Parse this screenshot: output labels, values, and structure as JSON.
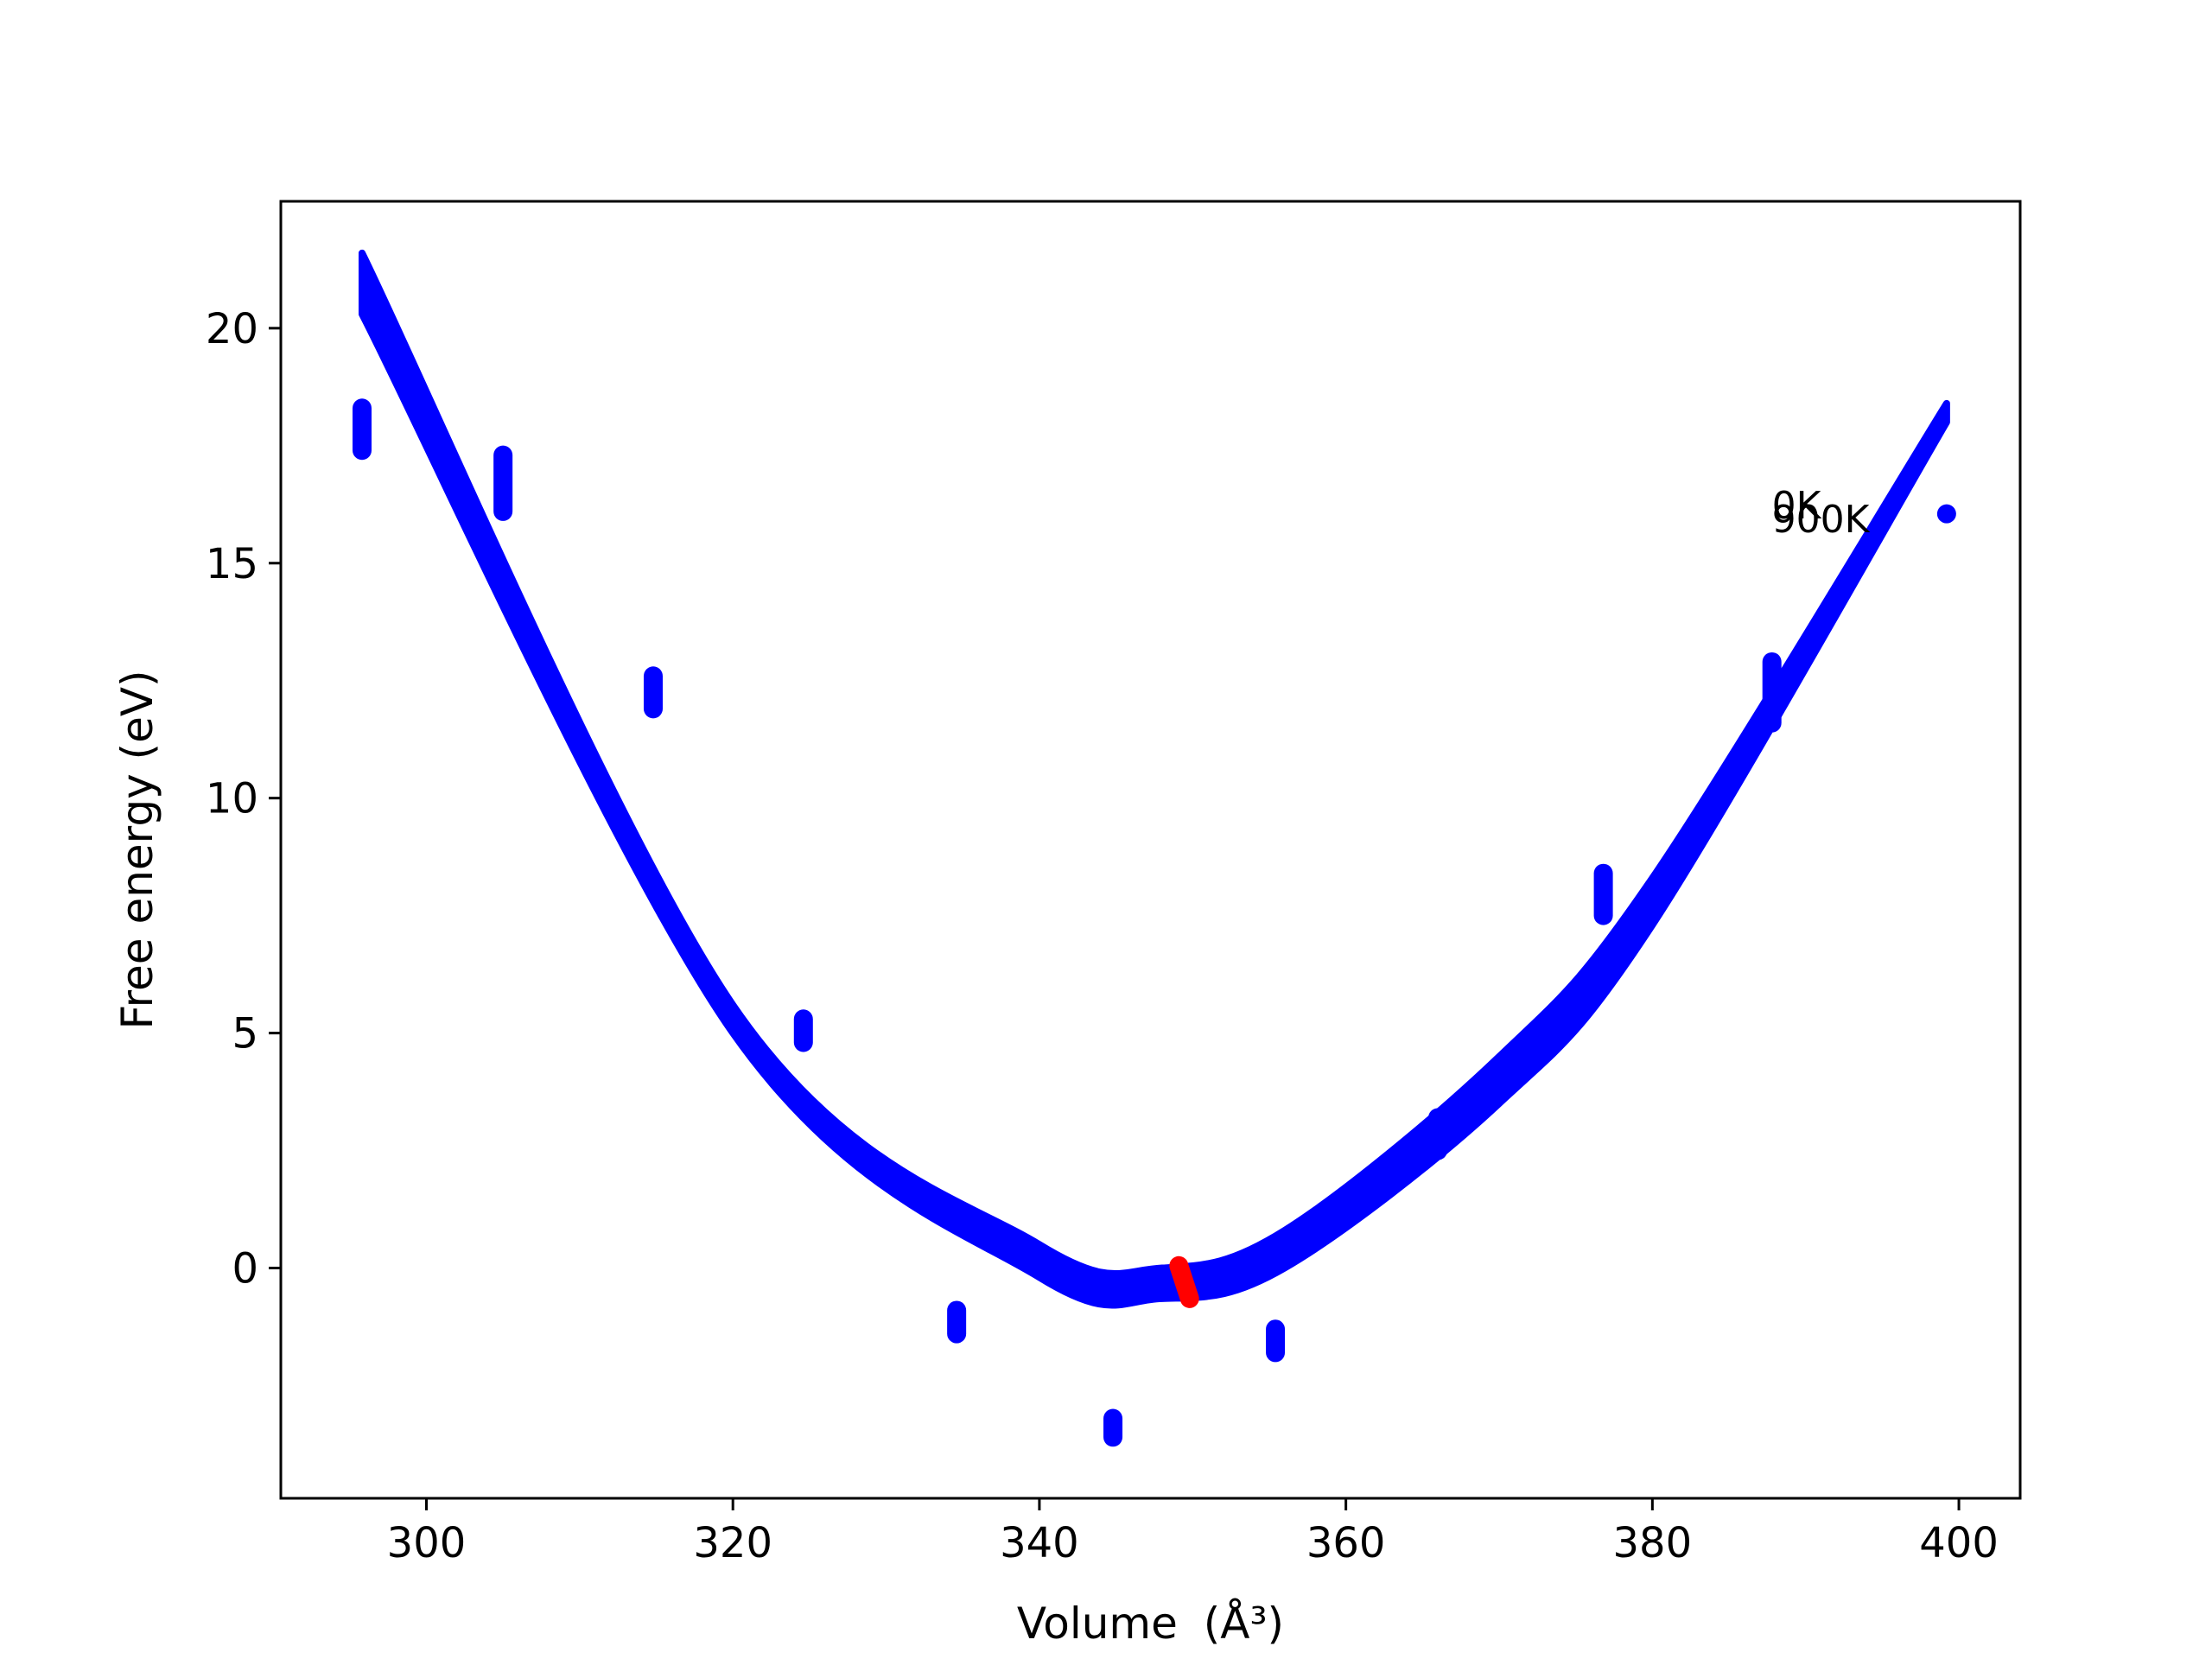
{
  "chart_data": {
    "type": "scatter",
    "title": "",
    "xlabel": "Volume",
    "xlabel_unit": "(Å³)",
    "ylabel": "Free energy (eV)",
    "xlim": [
      290.5,
      404
    ],
    "ylim": [
      -4.9,
      22.7
    ],
    "xticks": [
      300,
      320,
      340,
      360,
      380,
      400
    ],
    "yticks": [
      0,
      5,
      10,
      15,
      20
    ],
    "grid": false,
    "legend": "none",
    "colors": {
      "points": "#0000ff",
      "fit": "#0000ff",
      "minimum": "#ff0000",
      "text": "#000000"
    },
    "fit_curve": {
      "description_hidden": false,
      "x_range": [
        295.8,
        399.2
      ],
      "band": [
        {
          "x": 295.8,
          "y_low": 20.3,
          "y_high": 21.6
        },
        {
          "x": 320.0,
          "y_low": 5.0,
          "y_high": 5.6
        },
        {
          "x": 340.0,
          "y_low": -0.2,
          "y_high": 0.5
        },
        {
          "x": 348.0,
          "y_low": -0.65,
          "y_high": 0.0
        },
        {
          "x": 356.0,
          "y_low": 0.0,
          "y_high": 0.8
        },
        {
          "x": 370.0,
          "y_low": 3.5,
          "y_high": 4.5
        },
        {
          "x": 380.0,
          "y_low": 7.3,
          "y_high": 8.3
        },
        {
          "x": 399.2,
          "y_low": 18.0,
          "y_high": 18.4
        }
      ]
    },
    "series": [
      {
        "color": "#0000ff",
        "points": [
          {
            "x": 295.8,
            "y_min": 17.4,
            "y_max": 18.3
          },
          {
            "x": 305.0,
            "y_min": 16.1,
            "y_max": 17.3
          },
          {
            "x": 314.8,
            "y_min": 11.9,
            "y_max": 12.6
          },
          {
            "x": 324.6,
            "y_min": 4.8,
            "y_max": 5.3
          },
          {
            "x": 334.6,
            "y_min": -1.4,
            "y_max": -0.9
          },
          {
            "x": 344.8,
            "y_min": -3.6,
            "y_max": -3.2
          },
          {
            "x": 355.4,
            "y_min": -1.8,
            "y_max": -1.3
          },
          {
            "x": 366.0,
            "y_min": 2.5,
            "y_max": 3.2
          },
          {
            "x": 376.8,
            "y_min": 7.5,
            "y_max": 8.4
          },
          {
            "x": 387.8,
            "y_min": 11.6,
            "y_max": 12.9
          },
          {
            "x": 399.2,
            "y_min": 16.05,
            "y_max": 16.05
          }
        ]
      }
    ],
    "minima": {
      "color": "#ff0000",
      "from": {
        "x": 349.1,
        "y": 0.05
      },
      "to": {
        "x": 349.8,
        "y": -0.65
      }
    },
    "annotations": [
      {
        "text": "0K",
        "x": 387.8,
        "y": 16.25
      },
      {
        "text": "900K",
        "x": 387.8,
        "y": 15.95
      }
    ]
  }
}
